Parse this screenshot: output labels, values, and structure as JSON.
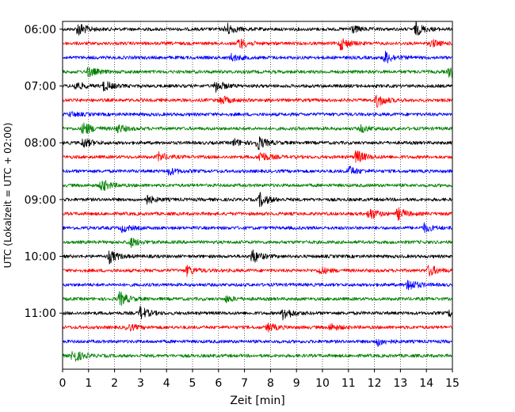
{
  "chart_data": {
    "type": "line",
    "title": "",
    "xlabel": "Zeit  [min]",
    "ylabel": "UTC (Lokalzeit = UTC + 02:00)",
    "xlim": [
      0,
      15
    ],
    "x_ticks": [
      "0",
      "1",
      "2",
      "3",
      "4",
      "5",
      "6",
      "7",
      "8",
      "9",
      "10",
      "11",
      "12",
      "13",
      "14",
      "15"
    ],
    "y_ticks": [
      "06:00",
      "07:00",
      "08:00",
      "09:00",
      "10:00",
      "11:00"
    ],
    "grid": "vertical dotted",
    "legend": "none",
    "colors": [
      "#000000",
      "#ff0000",
      "#0000ff",
      "#008000"
    ],
    "traces": [
      {
        "start": "06:00",
        "color": "#000000",
        "events": [
          [
            0.6,
            1.0
          ],
          [
            6.3,
            0.9
          ],
          [
            11.1,
            0.6
          ],
          [
            13.6,
            0.9
          ]
        ]
      },
      {
        "start": "06:15",
        "color": "#ff0000",
        "events": [
          [
            6.8,
            0.8
          ],
          [
            10.7,
            0.9
          ],
          [
            14.2,
            0.5
          ]
        ]
      },
      {
        "start": "06:30",
        "color": "#0000ff",
        "events": [
          [
            6.5,
            0.5
          ],
          [
            12.4,
            0.9
          ]
        ]
      },
      {
        "start": "06:45",
        "color": "#008000",
        "events": [
          [
            1.0,
            0.7
          ],
          [
            14.9,
            0.9
          ]
        ]
      },
      {
        "start": "07:00",
        "color": "#000000",
        "events": [
          [
            0.5,
            0.6
          ],
          [
            1.6,
            0.7
          ],
          [
            5.9,
            0.8
          ]
        ]
      },
      {
        "start": "07:15",
        "color": "#ff0000",
        "events": [
          [
            6.1,
            0.6
          ],
          [
            12.1,
            1.0
          ]
        ]
      },
      {
        "start": "07:30",
        "color": "#0000ff",
        "events": [
          [
            0.3,
            0.3
          ]
        ]
      },
      {
        "start": "07:45",
        "color": "#008000",
        "events": [
          [
            0.8,
            1.0
          ],
          [
            2.1,
            0.6
          ],
          [
            11.5,
            0.5
          ]
        ]
      },
      {
        "start": "08:00",
        "color": "#000000",
        "events": [
          [
            0.8,
            0.7
          ],
          [
            6.6,
            0.5
          ],
          [
            7.5,
            1.0
          ]
        ]
      },
      {
        "start": "08:15",
        "color": "#ff0000",
        "events": [
          [
            3.7,
            0.6
          ],
          [
            7.6,
            0.8
          ],
          [
            11.3,
            1.0
          ]
        ]
      },
      {
        "start": "08:30",
        "color": "#0000ff",
        "events": [
          [
            4.1,
            0.5
          ],
          [
            11.0,
            0.7
          ]
        ]
      },
      {
        "start": "08:45",
        "color": "#008000",
        "events": [
          [
            1.5,
            0.9
          ]
        ]
      },
      {
        "start": "09:00",
        "color": "#000000",
        "events": [
          [
            3.2,
            0.7
          ],
          [
            7.6,
            1.0
          ]
        ]
      },
      {
        "start": "09:15",
        "color": "#ff0000",
        "events": [
          [
            11.8,
            0.9
          ],
          [
            12.9,
            0.8
          ]
        ]
      },
      {
        "start": "09:30",
        "color": "#0000ff",
        "events": [
          [
            2.3,
            0.5
          ],
          [
            13.9,
            0.6
          ]
        ]
      },
      {
        "start": "09:45",
        "color": "#008000",
        "events": [
          [
            2.6,
            0.7
          ]
        ]
      },
      {
        "start": "10:00",
        "color": "#000000",
        "events": [
          [
            1.8,
            0.9
          ],
          [
            7.3,
            1.0
          ]
        ]
      },
      {
        "start": "10:15",
        "color": "#ff0000",
        "events": [
          [
            4.8,
            0.7
          ],
          [
            9.9,
            0.5
          ],
          [
            14.1,
            0.8
          ]
        ]
      },
      {
        "start": "10:30",
        "color": "#0000ff",
        "events": [
          [
            13.3,
            0.9
          ]
        ]
      },
      {
        "start": "10:45",
        "color": "#008000",
        "events": [
          [
            2.2,
            1.0
          ],
          [
            6.3,
            0.4
          ]
        ]
      },
      {
        "start": "11:00",
        "color": "#000000",
        "events": [
          [
            3.0,
            0.9
          ],
          [
            8.5,
            1.0
          ],
          [
            14.9,
            0.5
          ]
        ]
      },
      {
        "start": "11:15",
        "color": "#ff0000",
        "events": [
          [
            2.5,
            0.5
          ],
          [
            7.9,
            0.6
          ],
          [
            10.3,
            0.5
          ]
        ]
      },
      {
        "start": "11:30",
        "color": "#0000ff",
        "events": [
          [
            12.1,
            0.6
          ]
        ]
      },
      {
        "start": "11:45",
        "color": "#008000",
        "events": [
          [
            0.4,
            1.0
          ]
        ]
      }
    ]
  }
}
